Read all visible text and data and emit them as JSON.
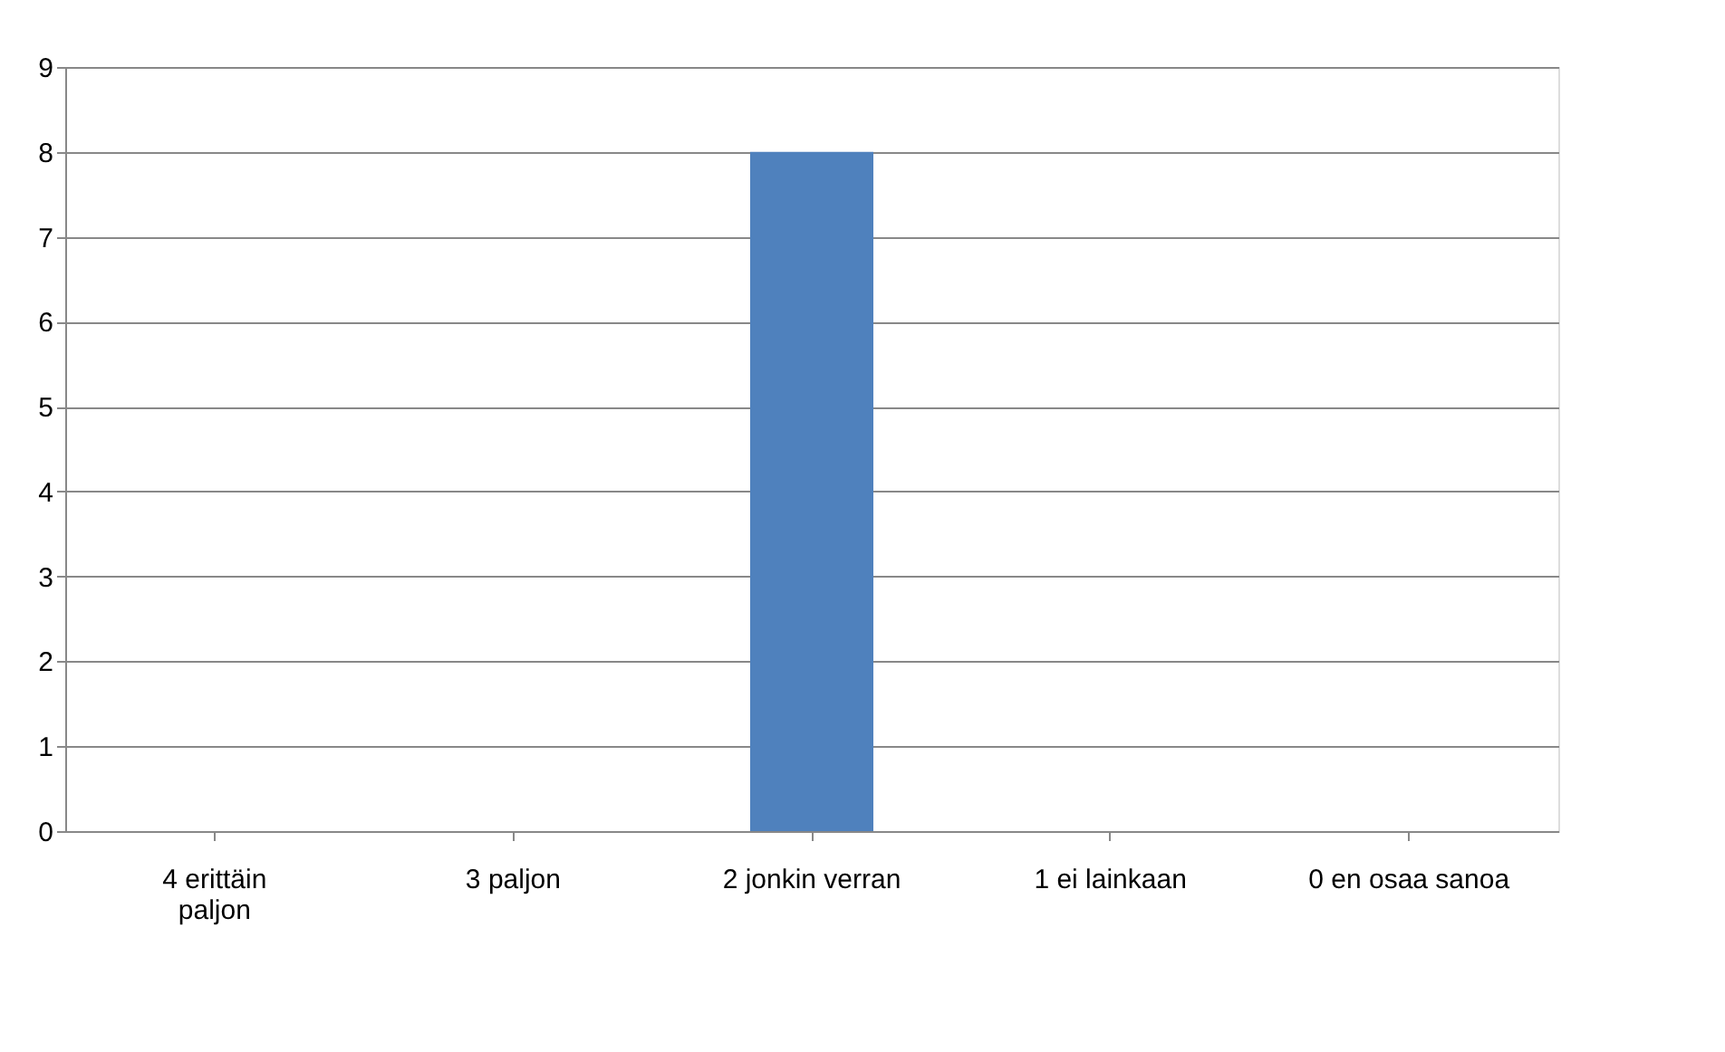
{
  "chart_data": {
    "type": "bar",
    "categories": [
      "4 erittäin paljon",
      "3 paljon",
      "2 jonkin verran",
      "1 ei lainkaan",
      "0 en osaa sanoa"
    ],
    "values": [
      0,
      0,
      8,
      0,
      0
    ],
    "color": "#4f81bd",
    "ylim": [
      0,
      9
    ],
    "yticks": [
      0,
      1,
      2,
      3,
      4,
      5,
      6,
      7,
      8,
      9
    ],
    "grid": "y"
  }
}
